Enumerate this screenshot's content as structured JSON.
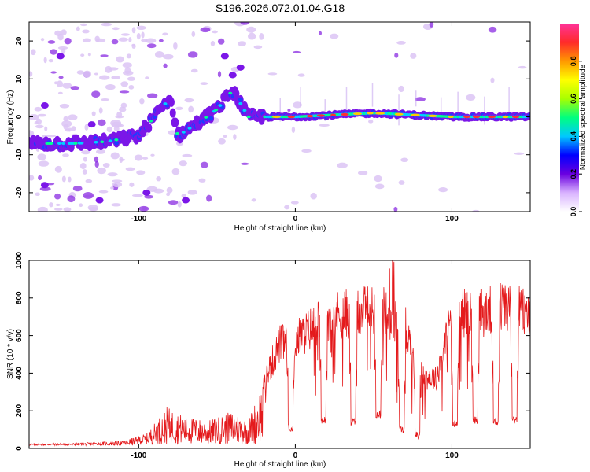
{
  "chart_data": [
    {
      "type": "heatmap",
      "title": "S196.2026.072.01.04.G18",
      "xlabel": "Height of straight line (km)",
      "ylabel": "Frequency (Hz)",
      "xlim": [
        -170,
        150
      ],
      "ylim": [
        -25,
        25
      ],
      "xticks": [
        -100,
        0,
        100
      ],
      "yticks": [
        -20,
        -10,
        0,
        10,
        20
      ],
      "colorbar": {
        "label": "Normalized spectral amplitude",
        "range": [
          0,
          1
        ],
        "ticks": [
          "0.0",
          "0.2",
          "0.4",
          "0.6",
          "0.8"
        ],
        "colors": [
          "#ffffff",
          "#d9b3ff",
          "#6a00e0",
          "#0000ff",
          "#00c8ff",
          "#00ff7f",
          "#a8ff00",
          "#ffff00",
          "#ff9900",
          "#ff2a2a",
          "#ff3399"
        ]
      },
      "ridge": [
        {
          "x": -170,
          "f": -7
        },
        {
          "x": -140,
          "f": -7
        },
        {
          "x": -120,
          "f": -6.5
        },
        {
          "x": -100,
          "f": -5
        },
        {
          "x": -90,
          "f": 0
        },
        {
          "x": -80,
          "f": 5
        },
        {
          "x": -75,
          "f": -5
        },
        {
          "x": -60,
          "f": -1
        },
        {
          "x": -50,
          "f": 2
        },
        {
          "x": -40,
          "f": 7
        },
        {
          "x": -30,
          "f": 0
        },
        {
          "x": -20,
          "f": 0
        },
        {
          "x": 0,
          "f": 0
        },
        {
          "x": 50,
          "f": 1
        },
        {
          "x": 100,
          "f": 0
        },
        {
          "x": 150,
          "f": 0
        }
      ]
    },
    {
      "type": "line",
      "xlabel": "Height of straight line (km)",
      "ylabel": "SNR (10 * v/v)",
      "xlim": [
        -170,
        150
      ],
      "ylim": [
        0,
        1000
      ],
      "xticks": [
        -100,
        0,
        100
      ],
      "yticks": [
        0,
        200,
        400,
        600,
        800,
        1000
      ],
      "series": [
        {
          "name": "SNR",
          "color": "#e41a1c",
          "envelope": [
            {
              "x": -170,
              "y": 25
            },
            {
              "x": -140,
              "y": 28
            },
            {
              "x": -110,
              "y": 40
            },
            {
              "x": -95,
              "y": 80
            },
            {
              "x": -82,
              "y": 220
            },
            {
              "x": -70,
              "y": 170
            },
            {
              "x": -55,
              "y": 150
            },
            {
              "x": -40,
              "y": 200
            },
            {
              "x": -30,
              "y": 150
            },
            {
              "x": -20,
              "y": 380
            },
            {
              "x": -10,
              "y": 600
            },
            {
              "x": 0,
              "y": 620
            },
            {
              "x": 20,
              "y": 760
            },
            {
              "x": 40,
              "y": 780
            },
            {
              "x": 55,
              "y": 800
            },
            {
              "x": 70,
              "y": 700
            },
            {
              "x": 80,
              "y": 420
            },
            {
              "x": 90,
              "y": 400
            },
            {
              "x": 100,
              "y": 780
            },
            {
              "x": 120,
              "y": 780
            },
            {
              "x": 135,
              "y": 820
            },
            {
              "x": 150,
              "y": 760
            }
          ],
          "dips": [
            {
              "x": -3,
              "y": 90
            },
            {
              "x": 18,
              "y": 130
            },
            {
              "x": 37,
              "y": 120
            },
            {
              "x": 53,
              "y": 160
            },
            {
              "x": 68,
              "y": 80
            },
            {
              "x": 78,
              "y": 50
            },
            {
              "x": 102,
              "y": 110
            },
            {
              "x": 115,
              "y": 130
            },
            {
              "x": 128,
              "y": 120
            },
            {
              "x": 140,
              "y": 130
            }
          ]
        }
      ]
    }
  ]
}
